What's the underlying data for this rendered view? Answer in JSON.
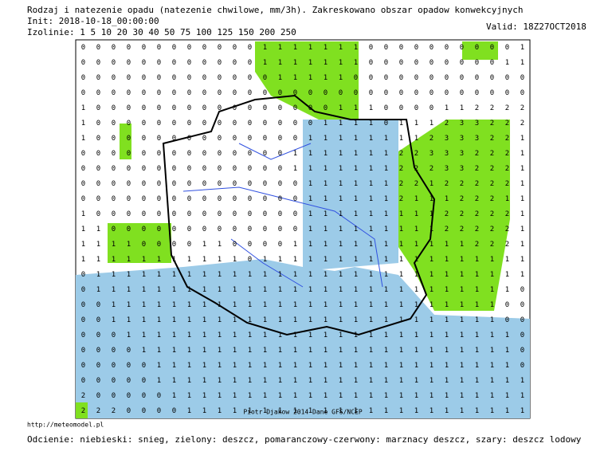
{
  "header": {
    "title": "Rodzaj i natezenie opadu (natezenie chwilowe, mm/3h). Zakreskowano obszar opadow konwekcyjnych",
    "init": "Init: 2018-10-18_00:00:00",
    "isolines": "Izolinie:  1  5  10  20  30  40  50  75  100  125  150  200  250",
    "valid": "Valid: 18Z27OCT2018"
  },
  "map": {
    "grid": [
      "000000000000111111100000000001",
      "000000000000111111100000000011",
      "000000000000011111000000000000",
      "000000000000000000000000000000",
      "100000000000000001110000112222",
      "100000000000000011110111233222",
      "100000000000000111111112333221",
      "000000000000001111111223332221",
      "000000000000001111111222332221",
      "000000000000000111111221222221",
      "000000000000000111111211122211",
      "100000000000000111111111222221",
      "110000000000000111111111222221",
      "111100001100001111111111112221",
      "111111111110111111111111111111",
      "011111111111111111111111111111",
      "011111111111111111111111111110",
      "001111111111111111111111111100",
      "001111111111111111111111111100",
      "000111111111111111111111111110",
      "000011111111111111111111111110",
      "000001111111111111111111111110",
      "000001111111111111111111111111",
      "200000111111111111111111111111",
      "222000011111111111111111111111"
    ],
    "credit": "Piotr Djakow 2014  Dane GFS/NCEP"
  },
  "footer": {
    "url": "http://meteomodel.pl",
    "legend": "Odcienie: niebieski: snieg, zielony: deszcz, pomaranczowy-czerwony: marznacy deszcz, szary: deszcz lodowy"
  }
}
